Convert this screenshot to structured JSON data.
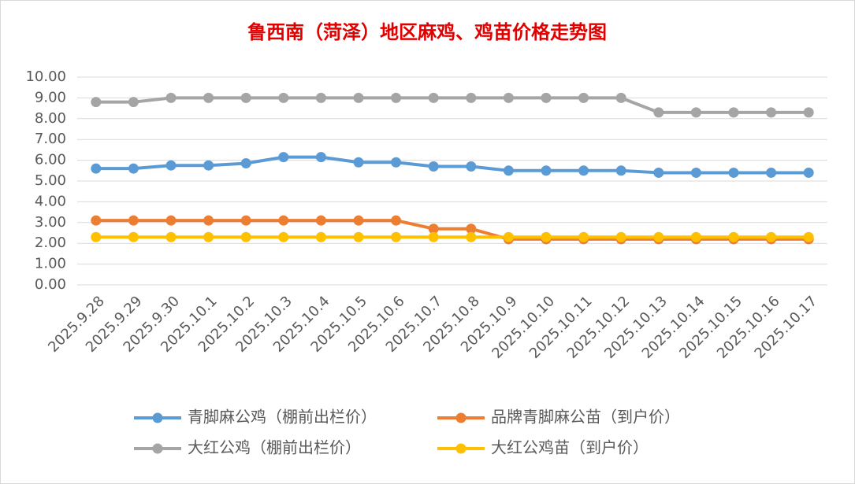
{
  "chart_data": {
    "type": "line",
    "title": "鲁西南（菏泽）地区麻鸡、鸡苗价格走势图",
    "categories": [
      "2025.9.28",
      "2025.9.29",
      "2025.9.30",
      "2025.10.1",
      "2025.10.2",
      "2025.10.3",
      "2025.10.4",
      "2025.10.5",
      "2025.10.6",
      "2025.10.7",
      "2025.10.8",
      "2025.10.9",
      "2025.10.10",
      "2025.10.11",
      "2025.10.12",
      "2025.10.13",
      "2025.10.14",
      "2025.10.15",
      "2025.10.16",
      "2025.10.17"
    ],
    "series": [
      {
        "name": "青脚麻公鸡（棚前出栏价）",
        "color": "#5b9bd5",
        "values": [
          5.6,
          5.6,
          5.75,
          5.75,
          5.85,
          6.15,
          6.15,
          5.9,
          5.9,
          5.7,
          5.7,
          5.5,
          5.5,
          5.5,
          5.5,
          5.4,
          5.4,
          5.4,
          5.4,
          5.4
        ]
      },
      {
        "name": "品牌青脚麻公苗（到户价）",
        "color": "#ed7d31",
        "values": [
          3.1,
          3.1,
          3.1,
          3.1,
          3.1,
          3.1,
          3.1,
          3.1,
          3.1,
          2.7,
          2.7,
          2.2,
          2.2,
          2.2,
          2.2,
          2.2,
          2.2,
          2.2,
          2.2,
          2.2
        ]
      },
      {
        "name": "大红公鸡（棚前出栏价）",
        "color": "#a5a5a5",
        "values": [
          8.8,
          8.8,
          9.0,
          9.0,
          9.0,
          9.0,
          9.0,
          9.0,
          9.0,
          9.0,
          9.0,
          9.0,
          9.0,
          9.0,
          9.0,
          8.3,
          8.3,
          8.3,
          8.3,
          8.3
        ]
      },
      {
        "name": "大红公鸡苗（到户价）",
        "color": "#ffc000",
        "values": [
          2.3,
          2.3,
          2.3,
          2.3,
          2.3,
          2.3,
          2.3,
          2.3,
          2.3,
          2.3,
          2.3,
          2.3,
          2.3,
          2.3,
          2.3,
          2.3,
          2.3,
          2.3,
          2.3,
          2.3
        ]
      }
    ],
    "ylim": [
      0,
      10
    ],
    "yticks": [
      {
        "value": 0,
        "label": "0.00"
      },
      {
        "value": 1,
        "label": "1.00"
      },
      {
        "value": 2,
        "label": "2.00"
      },
      {
        "value": 3,
        "label": "3.00"
      },
      {
        "value": 4,
        "label": "4.00"
      },
      {
        "value": 5,
        "label": "5.00"
      },
      {
        "value": 6,
        "label": "6.00"
      },
      {
        "value": 7,
        "label": "7.00"
      },
      {
        "value": 8,
        "label": "8.00"
      },
      {
        "value": 9,
        "label": "9.00"
      },
      {
        "value": 10,
        "label": "10.00"
      }
    ],
    "grid": true,
    "legend": "bottom"
  }
}
